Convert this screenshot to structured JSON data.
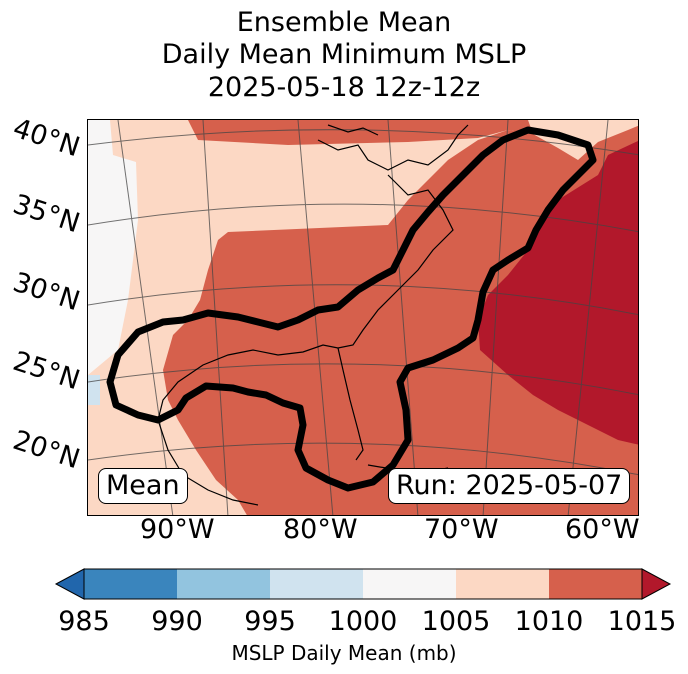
{
  "title": {
    "line1": "Ensemble Mean",
    "line2": "Daily Mean Minimum MSLP",
    "line3": "2025-05-18 12z-12z"
  },
  "map": {
    "latitude_labels": [
      "40°N",
      "35°N",
      "30°N",
      "25°N",
      "20°N"
    ],
    "longitude_labels": [
      "90°W",
      "80°W",
      "70°W",
      "60°W"
    ],
    "mean_label": "Mean",
    "run_label": "Run: 2025-05-07",
    "contour_icon": "thick-black-outline"
  },
  "colorbar": {
    "ticks": [
      "985",
      "990",
      "995",
      "1000",
      "1005",
      "1010",
      "1015"
    ],
    "colors": [
      "#3a85bd",
      "#92c4df",
      "#d0e3ef",
      "#f7f6f6",
      "#fcd8c4",
      "#d6604c",
      "#b2182b"
    ],
    "label": "MSLP Daily Mean (mb)"
  }
}
